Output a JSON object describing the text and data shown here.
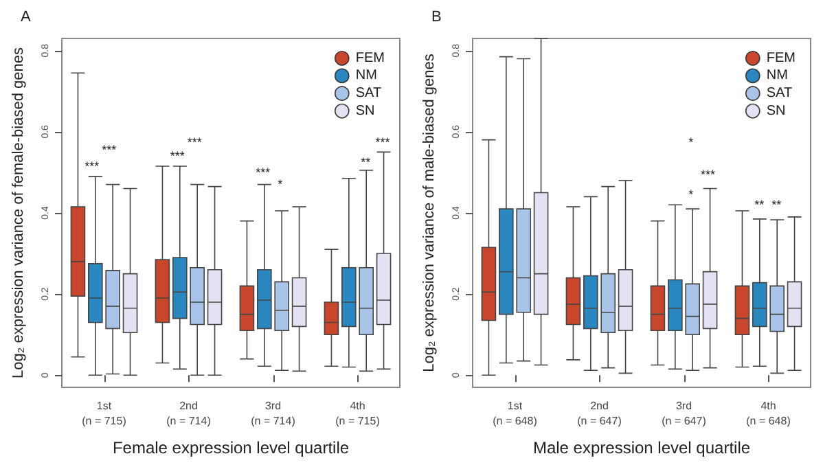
{
  "chart_data": [
    {
      "type": "box",
      "title": "A",
      "xlabel": "Female expression level quartile",
      "ylabel": "Log₂ expression variance of female-biased genes",
      "categories": [
        "1st\n(n = 715)",
        "2nd\n(n = 714)",
        "3rd\n(n = 714)",
        "4th\n(n = 715)"
      ],
      "ylim": [
        -0.03,
        0.83
      ],
      "yticks": [
        0,
        0.2,
        0.4,
        0.6,
        0.8
      ],
      "legend": "top right",
      "grid": false,
      "series": [
        {
          "name": "FEM",
          "color": "#c8462b",
          "boxes": [
            {
              "low": 0.045,
              "q1": 0.195,
              "median": 0.28,
              "q3": 0.415,
              "high": 0.745
            },
            {
              "low": 0.03,
              "q1": 0.13,
              "median": 0.19,
              "q3": 0.285,
              "high": 0.515
            },
            {
              "low": 0.04,
              "q1": 0.11,
              "median": 0.15,
              "q3": 0.22,
              "high": 0.38
            },
            {
              "low": 0.022,
              "q1": 0.1,
              "median": 0.13,
              "q3": 0.18,
              "high": 0.31
            }
          ]
        },
        {
          "name": "NM",
          "color": "#2b87c0",
          "boxes": [
            {
              "low": 0,
              "q1": 0.13,
              "median": 0.19,
              "q3": 0.275,
              "high": 0.49
            },
            {
              "low": 0.015,
              "q1": 0.14,
              "median": 0.205,
              "q3": 0.29,
              "high": 0.515
            },
            {
              "low": 0.022,
              "q1": 0.115,
              "median": 0.185,
              "q3": 0.26,
              "high": 0.47
            },
            {
              "low": 0.02,
              "q1": 0.12,
              "median": 0.18,
              "q3": 0.265,
              "high": 0.485
            }
          ]
        },
        {
          "name": "SAT",
          "color": "#a9c4e8",
          "boxes": [
            {
              "low": 0.003,
              "q1": 0.115,
              "median": 0.17,
              "q3": 0.258,
              "high": 0.47
            },
            {
              "low": 0,
              "q1": 0.125,
              "median": 0.18,
              "q3": 0.265,
              "high": 0.47
            },
            {
              "low": 0.012,
              "q1": 0.11,
              "median": 0.16,
              "q3": 0.23,
              "high": 0.405
            },
            {
              "low": 0.01,
              "q1": 0.1,
              "median": 0.165,
              "q3": 0.265,
              "high": 0.505
            }
          ]
        },
        {
          "name": "SN",
          "color": "#e4e1f3",
          "boxes": [
            {
              "low": 0,
              "q1": 0.105,
              "median": 0.165,
              "q3": 0.25,
              "high": 0.46
            },
            {
              "low": 0,
              "q1": 0.125,
              "median": 0.18,
              "q3": 0.26,
              "high": 0.465
            },
            {
              "low": 0.01,
              "q1": 0.12,
              "median": 0.17,
              "q3": 0.24,
              "high": 0.415
            },
            {
              "low": 0.015,
              "q1": 0.125,
              "median": 0.185,
              "q3": 0.3,
              "high": 0.55
            }
          ]
        }
      ],
      "annotations": [
        "***",
        "***",
        "***",
        "***",
        "***",
        "*",
        "**",
        "***"
      ]
    },
    {
      "type": "box",
      "title": "B",
      "xlabel": "Male expression level quartile",
      "ylabel": "Log₂ expression variance of male-biased genes",
      "categories": [
        "1st\n(n = 648)",
        "2nd\n(n = 647)",
        "3rd\n(n = 647)",
        "4th\n(n = 648)"
      ],
      "ylim": [
        -0.03,
        0.83
      ],
      "yticks": [
        0,
        0.2,
        0.4,
        0.6,
        0.8
      ],
      "legend": "top right",
      "grid": false,
      "series": [
        {
          "name": "FEM",
          "color": "#c8462b",
          "boxes": [
            {
              "low": 0,
              "q1": 0.135,
              "median": 0.205,
              "q3": 0.315,
              "high": 0.58
            },
            {
              "low": 0.038,
              "q1": 0.125,
              "median": 0.175,
              "q3": 0.24,
              "high": 0.415
            },
            {
              "low": 0.025,
              "q1": 0.11,
              "median": 0.15,
              "q3": 0.22,
              "high": 0.38
            },
            {
              "low": 0.02,
              "q1": 0.1,
              "median": 0.14,
              "q3": 0.22,
              "high": 0.405
            }
          ]
        },
        {
          "name": "NM",
          "color": "#2b87c0",
          "boxes": [
            {
              "low": 0.03,
              "q1": 0.15,
              "median": 0.255,
              "q3": 0.41,
              "high": 0.785
            },
            {
              "low": 0.012,
              "q1": 0.115,
              "median": 0.165,
              "q3": 0.245,
              "high": 0.44
            },
            {
              "low": 0.015,
              "q1": 0.11,
              "median": 0.165,
              "q3": 0.235,
              "high": 0.42
            },
            {
              "low": 0.022,
              "q1": 0.12,
              "median": 0.165,
              "q3": 0.228,
              "high": 0.385
            }
          ]
        },
        {
          "name": "SAT",
          "color": "#a9c4e8",
          "boxes": [
            {
              "low": 0.035,
              "q1": 0.155,
              "median": 0.24,
              "q3": 0.41,
              "high": 0.78
            },
            {
              "low": 0.018,
              "q1": 0.105,
              "median": 0.155,
              "q3": 0.25,
              "high": 0.465
            },
            {
              "low": 0.012,
              "q1": 0.1,
              "median": 0.145,
              "q3": 0.225,
              "high": 0.41
            },
            {
              "low": 0.005,
              "q1": 0.108,
              "median": 0.15,
              "q3": 0.22,
              "high": 0.383
            }
          ]
        },
        {
          "name": "SN",
          "color": "#e4e1f3",
          "boxes": [
            {
              "low": 0.025,
              "q1": 0.15,
              "median": 0.25,
              "q3": 0.45,
              "high": 0.83
            },
            {
              "low": 0.005,
              "q1": 0.11,
              "median": 0.17,
              "q3": 0.26,
              "high": 0.48
            },
            {
              "low": 0.018,
              "q1": 0.115,
              "median": 0.175,
              "q3": 0.255,
              "high": 0.46
            },
            {
              "low": 0.012,
              "q1": 0.12,
              "median": 0.165,
              "q3": 0.23,
              "high": 0.39
            }
          ]
        }
      ],
      "annotations": [
        "*",
        "***",
        "*",
        "**",
        "**"
      ]
    }
  ]
}
